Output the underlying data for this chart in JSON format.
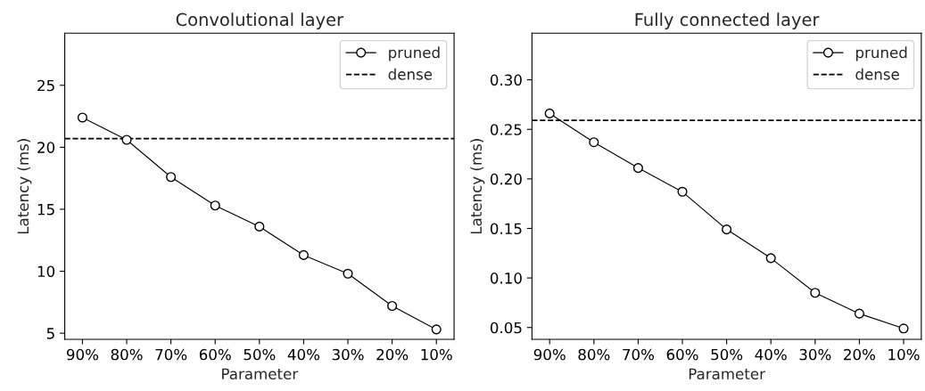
{
  "chart_data": [
    {
      "type": "line",
      "title": "Convolutional layer",
      "xlabel": "Parameter",
      "ylabel": "Latency (ms)",
      "categories": [
        "90%",
        "80%",
        "70%",
        "60%",
        "50%",
        "40%",
        "30%",
        "20%",
        "10%"
      ],
      "series": [
        {
          "name": "pruned",
          "color": "#000000",
          "values": [
            22.4,
            20.6,
            17.6,
            15.3,
            13.6,
            11.3,
            9.8,
            7.2,
            5.3
          ]
        }
      ],
      "ref_lines": [
        {
          "axis": "y",
          "value": 20.7,
          "label": "dense",
          "color": "#000000",
          "line_style": "dashed"
        }
      ],
      "ylim": [
        4.5,
        29.2
      ],
      "yticks": [
        5,
        10,
        15,
        20,
        25
      ],
      "marker": "circle",
      "line_style": "solid",
      "legend": "top right",
      "grid": false
    },
    {
      "type": "line",
      "title": "Fully connected layer",
      "xlabel": "Parameter",
      "ylabel": "Latency (ms)",
      "categories": [
        "90%",
        "80%",
        "70%",
        "60%",
        "50%",
        "40%",
        "30%",
        "20%",
        "10%"
      ],
      "series": [
        {
          "name": "pruned",
          "color": "#000000",
          "values": [
            0.266,
            0.237,
            0.211,
            0.187,
            0.149,
            0.12,
            0.085,
            0.064,
            0.049
          ]
        }
      ],
      "ref_lines": [
        {
          "axis": "y",
          "value": 0.259,
          "label": "dense",
          "color": "#000000",
          "line_style": "dashed"
        }
      ],
      "ylim": [
        0.038,
        0.347
      ],
      "yticks": [
        {
          "value": 0.05,
          "label": "0.05"
        },
        {
          "value": 0.1,
          "label": "0.10"
        },
        {
          "value": 0.15,
          "label": "0.15"
        },
        {
          "value": 0.2,
          "label": "0.20"
        },
        {
          "value": 0.25,
          "label": "0.25"
        },
        {
          "value": 0.3,
          "label": "0.30"
        }
      ],
      "marker": "circle",
      "line_style": "solid",
      "legend": "top right",
      "grid": false
    }
  ]
}
